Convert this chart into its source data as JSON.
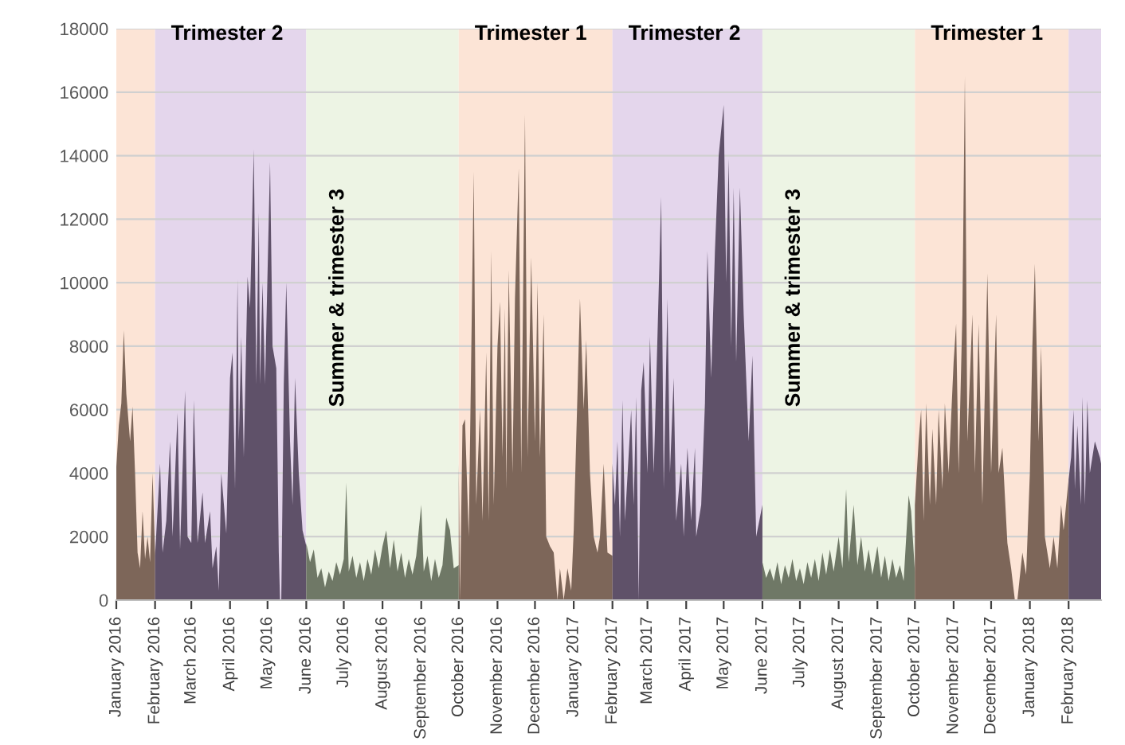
{
  "chart_data": {
    "type": "area",
    "grid": "y",
    "ylim": [
      0,
      18000
    ],
    "yticks": [
      0,
      2000,
      4000,
      6000,
      8000,
      10000,
      12000,
      14000,
      16000,
      18000
    ],
    "xlim": [
      "2016-01-01",
      "2018-02-27"
    ],
    "xticks": [
      {
        "value": "2016-01",
        "label": "January 2016"
      },
      {
        "value": "2016-02",
        "label": "February 2016"
      },
      {
        "value": "2016-03",
        "label": "March 2016"
      },
      {
        "value": "2016-04",
        "label": "April 2016"
      },
      {
        "value": "2016-05",
        "label": "May 2016"
      },
      {
        "value": "2016-06",
        "label": "June 2016"
      },
      {
        "value": "2016-07",
        "label": "July 2016"
      },
      {
        "value": "2016-08",
        "label": "August 2016"
      },
      {
        "value": "2016-09",
        "label": "September 2016"
      },
      {
        "value": "2016-10",
        "label": "October 2016"
      },
      {
        "value": "2016-11",
        "label": "November 2016"
      },
      {
        "value": "2016-12",
        "label": "December 2016"
      },
      {
        "value": "2017-01",
        "label": "January 2017"
      },
      {
        "value": "2017-02",
        "label": "February 2017"
      },
      {
        "value": "2017-03",
        "label": "March 2017"
      },
      {
        "value": "2017-04",
        "label": "April 2017"
      },
      {
        "value": "2017-05",
        "label": "May 2017"
      },
      {
        "value": "2017-06",
        "label": "June 2017"
      },
      {
        "value": "2017-07",
        "label": "July 2017"
      },
      {
        "value": "2017-08",
        "label": "August 2017"
      },
      {
        "value": "2017-09",
        "label": "September 2017"
      },
      {
        "value": "2017-10",
        "label": "October 2017"
      },
      {
        "value": "2017-11",
        "label": "November 2017"
      },
      {
        "value": "2017-12",
        "label": "December 2017"
      },
      {
        "value": "2018-01",
        "label": "January 2018"
      },
      {
        "value": "2018-02",
        "label": "February 2018"
      }
    ],
    "bands": [
      {
        "axis": "x",
        "from": "2016-01-01",
        "to": "2016-02-01",
        "color": "#fce4d6"
      },
      {
        "axis": "x",
        "from": "2016-02-01",
        "to": "2016-06-01",
        "label": "Trimester 2",
        "color": "#e4d6ec"
      },
      {
        "axis": "x",
        "from": "2016-06-01",
        "to": "2016-10-01",
        "label": "Summer & trimester 3",
        "color": "#edf4e4"
      },
      {
        "axis": "x",
        "from": "2016-10-01",
        "to": "2017-02-01",
        "label": "Trimester 1",
        "color": "#fce4d6"
      },
      {
        "axis": "x",
        "from": "2017-02-01",
        "to": "2017-06-01",
        "label": "Trimester 2",
        "color": "#e4d6ec"
      },
      {
        "axis": "x",
        "from": "2017-06-01",
        "to": "2017-10-01",
        "label": "Summer & trimester 3",
        "color": "#edf4e4"
      },
      {
        "axis": "x",
        "from": "2017-10-01",
        "to": "2018-02-01",
        "label": "Trimester 1",
        "color": "#fce4d6"
      },
      {
        "axis": "x",
        "from": "2018-02-01",
        "to": "2018-02-27",
        "color": "#e4d6ec"
      }
    ],
    "series": [
      {
        "color": "#7d6659",
        "x": [
          "2016-01-01",
          "2016-01-03",
          "2016-01-05",
          "2016-01-07",
          "2016-01-09",
          "2016-01-12",
          "2016-01-14",
          "2016-01-16",
          "2016-01-18",
          "2016-01-20",
          "2016-01-22",
          "2016-01-24",
          "2016-01-26",
          "2016-01-28",
          "2016-01-30",
          "2016-02-01"
        ],
        "values": [
          4200,
          5500,
          6200,
          8500,
          6500,
          5000,
          6100,
          4000,
          1500,
          1000,
          2800,
          1300,
          2000,
          1200,
          4000,
          1500
        ]
      },
      {
        "color": "#5f5169",
        "x": [
          "2016-02-01",
          "2016-02-05",
          "2016-02-07",
          "2016-02-10",
          "2016-02-13",
          "2016-02-15",
          "2016-02-19",
          "2016-02-21",
          "2016-02-25",
          "2016-02-27",
          "2016-03-01",
          "2016-03-03",
          "2016-03-06",
          "2016-03-10",
          "2016-03-12",
          "2016-03-16",
          "2016-03-18",
          "2016-03-21",
          "2016-03-23",
          "2016-03-25",
          "2016-03-29",
          "2016-04-01",
          "2016-04-03",
          "2016-04-05",
          "2016-04-07",
          "2016-04-08",
          "2016-04-10",
          "2016-04-12",
          "2016-04-15",
          "2016-04-17",
          "2016-04-20",
          "2016-04-22",
          "2016-04-24",
          "2016-04-25",
          "2016-04-27",
          "2016-04-29",
          "2016-05-03",
          "2016-05-05",
          "2016-05-08",
          "2016-05-10",
          "2016-05-11",
          "2016-05-12",
          "2016-05-14",
          "2016-05-16",
          "2016-05-19",
          "2016-05-21",
          "2016-05-23",
          "2016-05-26",
          "2016-05-29",
          "2016-06-01"
        ],
        "values": [
          1400,
          4300,
          1500,
          2500,
          5000,
          2000,
          5900,
          1600,
          6600,
          2000,
          1800,
          6300,
          1800,
          3400,
          1800,
          2800,
          1000,
          1700,
          300,
          4000,
          2100,
          7000,
          7800,
          3500,
          10100,
          5000,
          8300,
          4500,
          10200,
          9200,
          14200,
          6800,
          12200,
          6800,
          10000,
          6800,
          13800,
          8000,
          7300,
          1500,
          0,
          0,
          6800,
          10000,
          5000,
          3000,
          7000,
          4000,
          2200,
          1700
        ]
      },
      {
        "color": "#6f7866",
        "x": [
          "2016-06-01",
          "2016-06-04",
          "2016-06-07",
          "2016-06-10",
          "2016-06-13",
          "2016-06-16",
          "2016-06-19",
          "2016-06-22",
          "2016-06-25",
          "2016-06-28",
          "2016-07-01",
          "2016-07-03",
          "2016-07-05",
          "2016-07-08",
          "2016-07-11",
          "2016-07-14",
          "2016-07-17",
          "2016-07-20",
          "2016-07-23",
          "2016-07-26",
          "2016-07-29",
          "2016-08-01",
          "2016-08-04",
          "2016-08-07",
          "2016-08-10",
          "2016-08-13",
          "2016-08-16",
          "2016-08-19",
          "2016-08-22",
          "2016-08-25",
          "2016-08-28",
          "2016-09-01",
          "2016-09-03",
          "2016-09-06",
          "2016-09-09",
          "2016-09-12",
          "2016-09-15",
          "2016-09-18",
          "2016-09-21",
          "2016-09-24",
          "2016-09-27",
          "2016-10-01"
        ],
        "values": [
          1800,
          1200,
          1600,
          700,
          1000,
          400,
          900,
          600,
          1200,
          800,
          1300,
          3700,
          900,
          1400,
          700,
          1200,
          600,
          1300,
          800,
          1600,
          1000,
          1700,
          2200,
          1000,
          1900,
          900,
          1500,
          700,
          1300,
          800,
          1400,
          3000,
          900,
          1400,
          600,
          1300,
          700,
          1100,
          2600,
          2200,
          1000,
          1100
        ]
      },
      {
        "color": "#7d6659",
        "x": [
          "2016-10-01",
          "2016-10-02",
          "2016-10-04",
          "2016-10-06",
          "2016-10-09",
          "2016-10-13",
          "2016-10-15",
          "2016-10-18",
          "2016-10-20",
          "2016-10-23",
          "2016-10-25",
          "2016-10-27",
          "2016-10-29",
          "2016-11-01",
          "2016-11-03",
          "2016-11-05",
          "2016-11-07",
          "2016-11-08",
          "2016-11-10",
          "2016-11-13",
          "2016-11-15",
          "2016-11-18",
          "2016-11-20",
          "2016-11-23",
          "2016-11-25",
          "2016-11-28",
          "2016-12-01",
          "2016-12-03",
          "2016-12-05",
          "2016-12-08",
          "2016-12-10",
          "2016-12-13",
          "2016-12-16",
          "2016-12-19",
          "2016-12-21",
          "2016-12-24",
          "2016-12-27",
          "2016-12-30",
          "2017-01-01",
          "2017-01-04",
          "2017-01-06",
          "2017-01-09",
          "2017-01-11",
          "2017-01-14",
          "2017-01-17",
          "2017-01-20",
          "2017-01-22",
          "2017-01-25",
          "2017-01-28",
          "2017-02-01"
        ],
        "values": [
          4300,
          0,
          5500,
          5700,
          2000,
          13500,
          3000,
          6000,
          2500,
          7800,
          2500,
          11000,
          3000,
          8000,
          9400,
          4500,
          9200,
          3500,
          10400,
          4000,
          9500,
          13600,
          4000,
          15300,
          4500,
          10800,
          5000,
          10000,
          4500,
          9000,
          2000,
          1700,
          1500,
          0,
          1000,
          0,
          1000,
          300,
          2200,
          6500,
          9500,
          6000,
          8200,
          4000,
          2000,
          1500,
          2000,
          4300,
          1500,
          1400
        ]
      },
      {
        "color": "#5f5169",
        "x": [
          "2017-02-01",
          "2017-02-03",
          "2017-02-05",
          "2017-02-07",
          "2017-02-09",
          "2017-02-11",
          "2017-02-16",
          "2017-02-18",
          "2017-02-20",
          "2017-02-22",
          "2017-02-24",
          "2017-02-26",
          "2017-03-01",
          "2017-03-03",
          "2017-03-06",
          "2017-03-08",
          "2017-03-12",
          "2017-03-14",
          "2017-03-17",
          "2017-03-19",
          "2017-03-22",
          "2017-03-24",
          "2017-03-28",
          "2017-03-30",
          "2017-04-02",
          "2017-04-05",
          "2017-04-08",
          "2017-04-09",
          "2017-04-13",
          "2017-04-16",
          "2017-04-18",
          "2017-04-21",
          "2017-04-24",
          "2017-04-27",
          "2017-05-01",
          "2017-05-03",
          "2017-05-05",
          "2017-05-07",
          "2017-05-09",
          "2017-05-11",
          "2017-05-14",
          "2017-05-17",
          "2017-05-21",
          "2017-05-24",
          "2017-05-27",
          "2017-06-01"
        ],
        "values": [
          4300,
          3000,
          5000,
          2000,
          6300,
          2500,
          6000,
          3000,
          6400,
          0,
          6600,
          7500,
          4000,
          8300,
          4000,
          6800,
          12700,
          3500,
          9500,
          4000,
          7000,
          2500,
          4300,
          2000,
          4800,
          2500,
          4800,
          2000,
          3000,
          6200,
          11000,
          7000,
          11000,
          14000,
          15600,
          10000,
          13900,
          8000,
          13000,
          7500,
          13000,
          9000,
          5000,
          7700,
          2000,
          3000
        ]
      },
      {
        "color": "#6f7866",
        "x": [
          "2017-06-01",
          "2017-06-04",
          "2017-06-07",
          "2017-06-10",
          "2017-06-13",
          "2017-06-16",
          "2017-06-19",
          "2017-06-22",
          "2017-06-25",
          "2017-06-28",
          "2017-07-01",
          "2017-07-04",
          "2017-07-07",
          "2017-07-10",
          "2017-07-13",
          "2017-07-16",
          "2017-07-19",
          "2017-07-22",
          "2017-07-25",
          "2017-07-28",
          "2017-08-01",
          "2017-08-04",
          "2017-08-07",
          "2017-08-09",
          "2017-08-13",
          "2017-08-16",
          "2017-08-19",
          "2017-08-22",
          "2017-08-25",
          "2017-08-28",
          "2017-09-01",
          "2017-09-04",
          "2017-09-07",
          "2017-09-10",
          "2017-09-13",
          "2017-09-16",
          "2017-09-19",
          "2017-09-22",
          "2017-09-26",
          "2017-09-28",
          "2017-10-01"
        ],
        "values": [
          1200,
          700,
          1000,
          600,
          1200,
          500,
          1100,
          700,
          1300,
          600,
          1000,
          500,
          1200,
          700,
          1300,
          600,
          1500,
          800,
          1600,
          900,
          2000,
          1000,
          3500,
          1200,
          3000,
          1100,
          2000,
          900,
          1600,
          800,
          1700,
          700,
          1400,
          600,
          1300,
          700,
          1100,
          600,
          3300,
          2800,
          900
        ]
      },
      {
        "color": "#7d6659",
        "x": [
          "2017-10-01",
          "2017-10-04",
          "2017-10-06",
          "2017-10-08",
          "2017-10-10",
          "2017-10-13",
          "2017-10-15",
          "2017-10-18",
          "2017-10-20",
          "2017-10-23",
          "2017-10-25",
          "2017-10-28",
          "2017-11-01",
          "2017-11-03",
          "2017-11-05",
          "2017-11-08",
          "2017-11-10",
          "2017-11-12",
          "2017-11-16",
          "2017-11-18",
          "2017-11-21",
          "2017-11-24",
          "2017-11-28",
          "2017-12-01",
          "2017-12-05",
          "2017-12-07",
          "2017-12-10",
          "2017-12-14",
          "2017-12-17",
          "2017-12-20",
          "2017-12-22",
          "2017-12-26",
          "2017-12-29",
          "2018-01-01",
          "2018-01-03",
          "2018-01-05",
          "2018-01-08",
          "2018-01-10",
          "2018-01-13",
          "2018-01-17",
          "2018-01-20",
          "2018-01-23",
          "2018-01-26",
          "2018-01-28",
          "2018-02-01"
        ],
        "values": [
          3000,
          5000,
          6000,
          2500,
          6200,
          3000,
          5400,
          3000,
          6000,
          3500,
          6200,
          4000,
          7500,
          8700,
          4000,
          9000,
          16500,
          5000,
          9000,
          4000,
          8700,
          3000,
          10300,
          4000,
          9000,
          4000,
          4800,
          1800,
          1000,
          0,
          0,
          1500,
          800,
          4000,
          8000,
          10600,
          5000,
          8000,
          2000,
          1000,
          2000,
          1000,
          3000,
          2200,
          3800
        ]
      },
      {
        "color": "#5f5169",
        "x": [
          "2018-02-01",
          "2018-02-03",
          "2018-02-05",
          "2018-02-06",
          "2018-02-08",
          "2018-02-11",
          "2018-02-12",
          "2018-02-14",
          "2018-02-16",
          "2018-02-18",
          "2018-02-22",
          "2018-02-26",
          "2018-02-27"
        ],
        "values": [
          3800,
          4500,
          6000,
          3500,
          5500,
          3000,
          6400,
          3000,
          6300,
          4000,
          5000,
          4500,
          4300
        ]
      }
    ]
  }
}
